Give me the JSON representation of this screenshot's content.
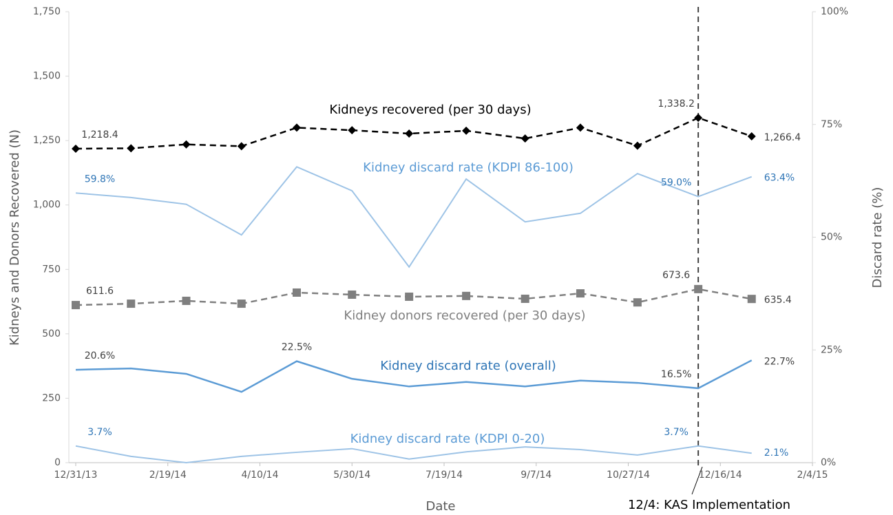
{
  "chart_data": {
    "type": "line",
    "x": [
      "12/31/13",
      "1/30/14",
      "3/1/14",
      "3/31/14",
      "4/30/14",
      "5/30/14",
      "6/30/14",
      "7/31/14",
      "9/1/14",
      "10/1/14",
      "11/1/14",
      "12/4/14",
      "1/2/15"
    ],
    "xlim": [
      "12/31/13",
      "2/4/15"
    ],
    "xticks": [
      "12/31/13",
      "2/19/14",
      "4/10/14",
      "5/30/14",
      "7/19/14",
      "9/7/14",
      "10/27/14",
      "12/16/14",
      "2/4/15"
    ],
    "xlabel": "Date",
    "ylabel": "Kidneys and Donors Recovered (N)",
    "y2label": "Discard rate (%)",
    "ylim": [
      0,
      1750
    ],
    "yticks": [
      0,
      250,
      500,
      750,
      {
        "value": 1000,
        "label": "1,000"
      },
      {
        "value": 1250,
        "label": "1,250"
      },
      {
        "value": 1500,
        "label": "1,500"
      },
      {
        "value": 1750,
        "label": "1,750"
      }
    ],
    "y2lim": [
      0,
      100
    ],
    "y2ticks": [
      {
        "value": 0,
        "label": "0%"
      },
      {
        "value": 25,
        "label": "25%"
      },
      {
        "value": 50,
        "label": "50%"
      },
      {
        "value": 75,
        "label": "75%"
      },
      {
        "value": 100,
        "label": "100%"
      }
    ],
    "series": [
      {
        "name": "Kidneys recovered (per 30 days)",
        "color": "#000000",
        "marker": "diamond",
        "dashed": true,
        "values": [
          1218.4,
          1220,
          1235,
          1228,
          1300,
          1290,
          1277,
          1288,
          1258,
          1300,
          1230,
          1338.2,
          1266.4
        ],
        "value_labels": [
          "1,218.4",
          null,
          null,
          null,
          null,
          null,
          null,
          null,
          null,
          null,
          null,
          "1,338.2",
          "1,266.4"
        ]
      },
      {
        "name": "Kidney donors recovered (per 30 days)",
        "color": "#7f7f7f",
        "marker": "square",
        "dashed": true,
        "values": [
          611.6,
          617,
          628,
          617,
          660,
          652,
          644,
          647,
          636,
          657,
          622,
          673.6,
          635.4
        ],
        "value_labels": [
          "611.6",
          null,
          null,
          null,
          null,
          null,
          null,
          null,
          null,
          null,
          null,
          "673.6",
          "635.4"
        ]
      },
      {
        "name": "Kidney discard rate (KDPI 86-100)",
        "color": "#9dc3e6",
        "axis": "y2",
        "values": [
          59.8,
          58.8,
          57.3,
          50.5,
          65.6,
          60.3,
          43.4,
          62.9,
          53.4,
          55.3,
          64.1,
          59.0,
          63.4
        ],
        "value_labels": [
          "59.8%",
          null,
          null,
          null,
          null,
          null,
          null,
          null,
          null,
          null,
          null,
          "59.0%",
          "63.4%"
        ]
      },
      {
        "name": "Kidney discard rate (overall)",
        "color": "#5b9bd5",
        "axis": "y2",
        "values": [
          20.6,
          20.9,
          19.7,
          15.7,
          22.5,
          18.6,
          16.9,
          17.9,
          16.9,
          18.2,
          17.7,
          16.5,
          22.7
        ],
        "value_labels": [
          "20.6%",
          null,
          null,
          null,
          "22.5%",
          null,
          null,
          null,
          null,
          null,
          null,
          "16.5%",
          "22.7%"
        ]
      },
      {
        "name": "Kidney discard rate (KDPI 0-20)",
        "color": "#9dc3e6",
        "axis": "y2",
        "values": [
          3.7,
          1.4,
          0,
          1.4,
          2.3,
          3.1,
          0.8,
          2.4,
          3.5,
          2.9,
          1.7,
          3.7,
          2.1
        ],
        "value_labels": [
          "3.7%",
          null,
          null,
          null,
          null,
          null,
          null,
          null,
          null,
          null,
          null,
          "3.7%",
          "2.1%"
        ]
      }
    ],
    "annotation": {
      "text": "12/4: KAS Implementation",
      "x": "12/4/14"
    }
  }
}
